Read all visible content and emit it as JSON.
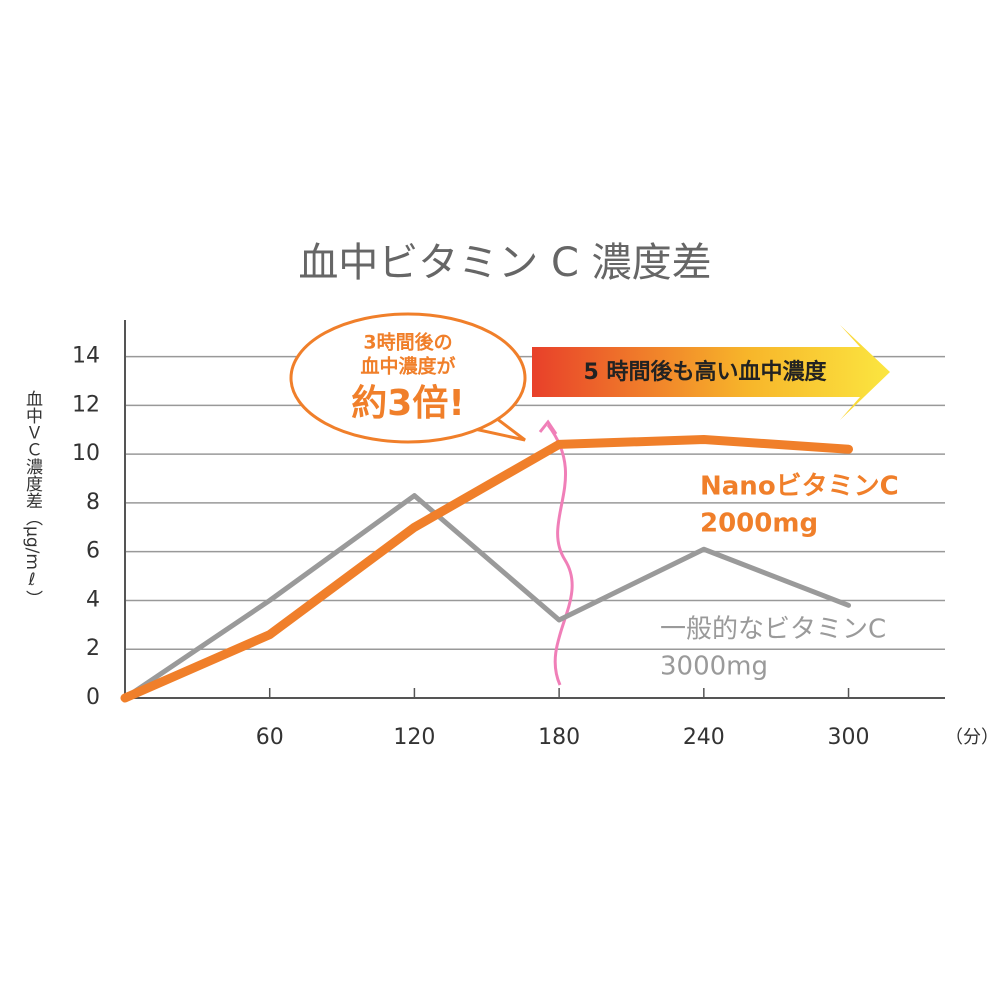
{
  "chart_data": {
    "type": "line",
    "title": "血中ビタミン C 濃度差",
    "y_label": "血中ＶＣ濃度差（μg/mℓ）",
    "x_unit": "（分）",
    "x": [
      0,
      60,
      120,
      180,
      240,
      300
    ],
    "xlim": [
      0,
      340
    ],
    "xticks": [
      60,
      120,
      180,
      240,
      300
    ],
    "ylim": [
      0,
      15.5
    ],
    "yticks": [
      0,
      2,
      4,
      6,
      8,
      10,
      12,
      14
    ],
    "grid": true,
    "series": [
      {
        "name": "NanoビタミンC",
        "dose": "2000mg",
        "color": "#f07f2a",
        "values": [
          0,
          2.6,
          7.0,
          10.4,
          10.6,
          10.2
        ]
      },
      {
        "name": "一般的なビタミンC",
        "dose": "3000mg",
        "color": "#9a9a9a",
        "values": [
          0,
          4.0,
          8.3,
          3.2,
          6.1,
          3.8
        ]
      }
    ],
    "bubble": [
      "3時間後の",
      "血中濃度が",
      "約3倍!"
    ],
    "banner": "5 時間後も高い血中濃度"
  }
}
